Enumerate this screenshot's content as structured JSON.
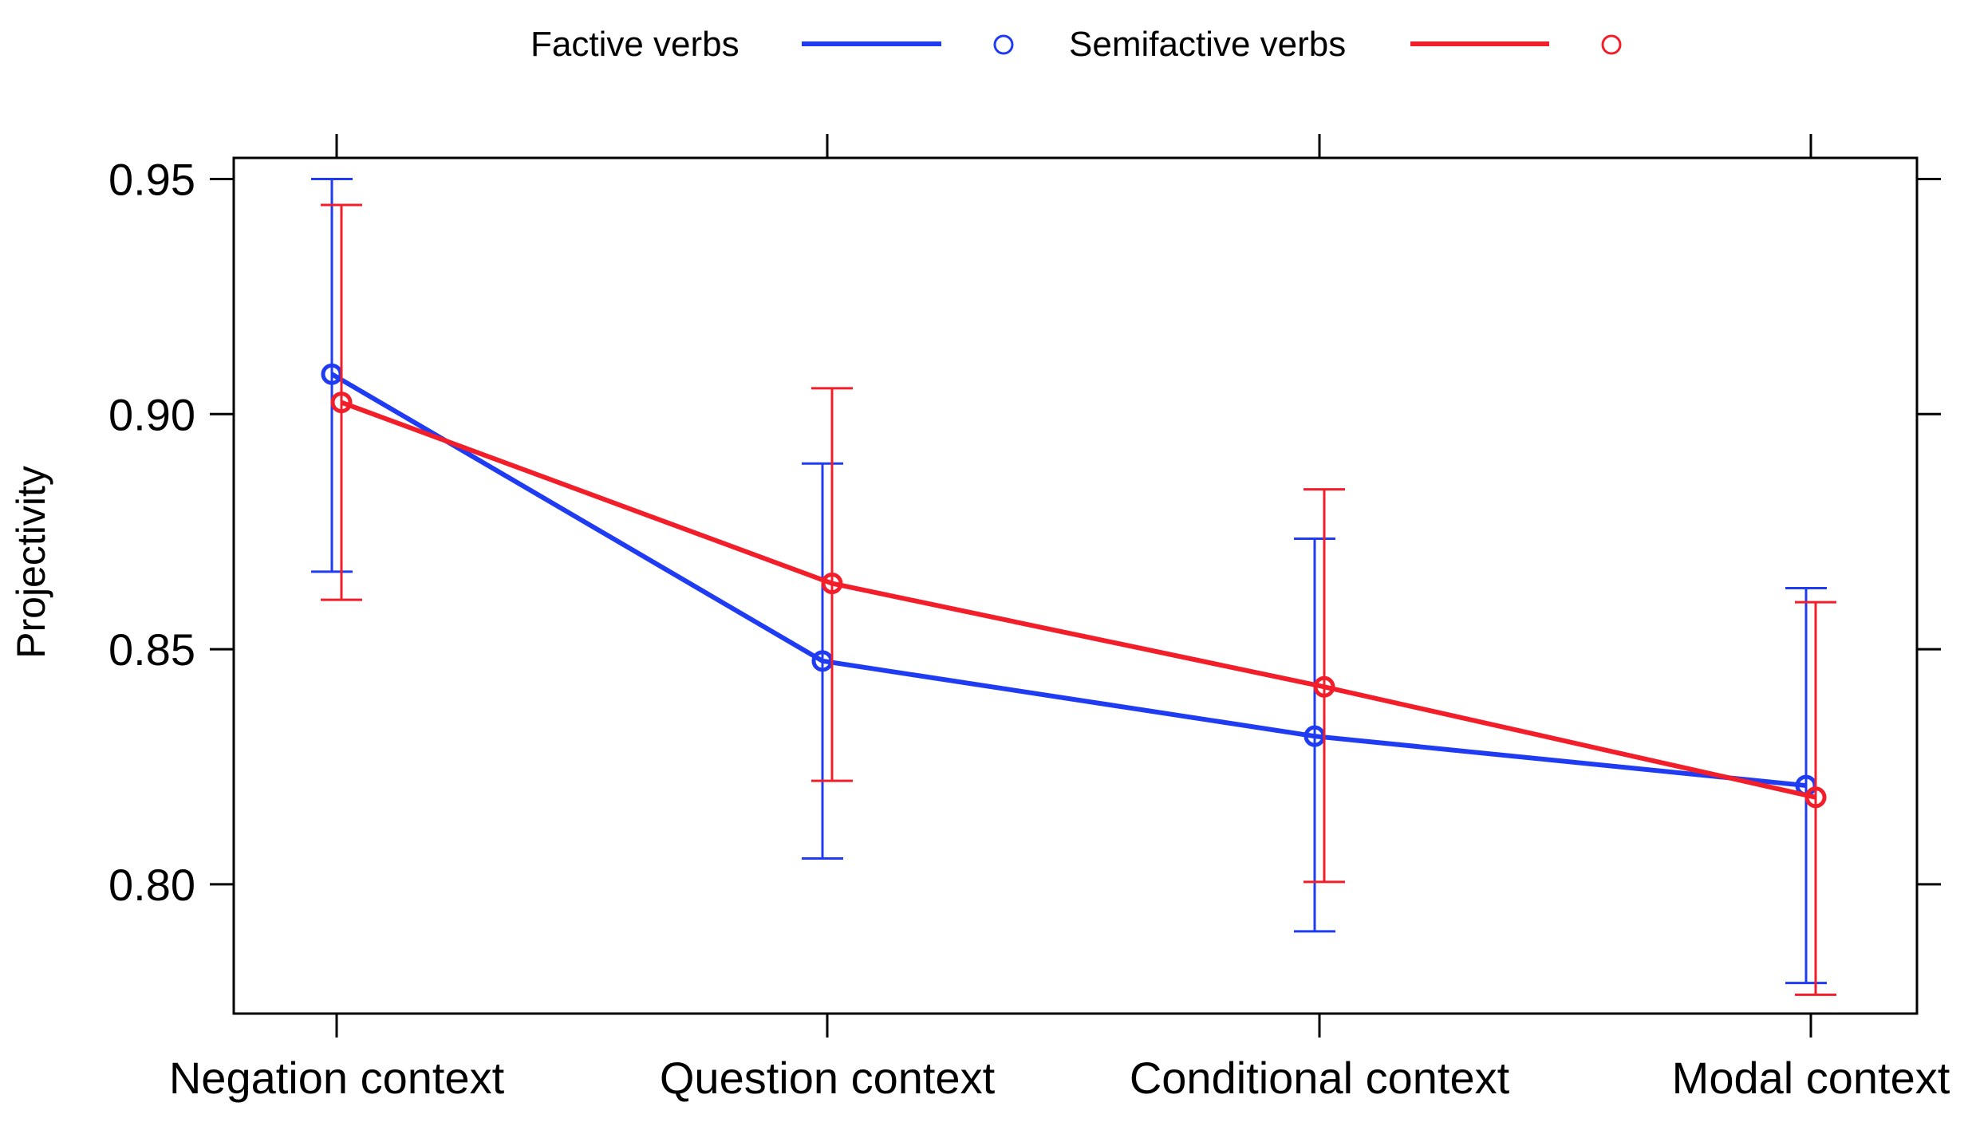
{
  "chart_data": {
    "type": "line",
    "title": "",
    "xlabel": "",
    "ylabel": "Projectivity",
    "categories": [
      "Negation context",
      "Question context",
      "Conditional context",
      "Modal context"
    ],
    "ylim": [
      0.7725,
      0.9545
    ],
    "yticks": [
      0.8,
      0.85,
      0.9,
      0.95
    ],
    "ytick_labels": [
      "0.80",
      "0.85",
      "0.90",
      "0.95"
    ],
    "grid": false,
    "legend_placement": "top",
    "error_bars": true,
    "series": [
      {
        "name": "Factive verbs",
        "color": "#1f3cf2",
        "marker": "open-circle",
        "values": [
          0.9085,
          0.8475,
          0.8315,
          0.821
        ],
        "lower": [
          0.8665,
          0.8055,
          0.79,
          0.779
        ],
        "upper": [
          0.95,
          0.8895,
          0.8735,
          0.863
        ]
      },
      {
        "name": "Semifactive verbs",
        "color": "#f21f2b",
        "marker": "open-circle",
        "values": [
          0.9025,
          0.864,
          0.842,
          0.8185
        ],
        "lower": [
          0.8605,
          0.822,
          0.8005,
          0.7765
        ],
        "upper": [
          0.9445,
          0.9055,
          0.884,
          0.86
        ]
      }
    ]
  }
}
